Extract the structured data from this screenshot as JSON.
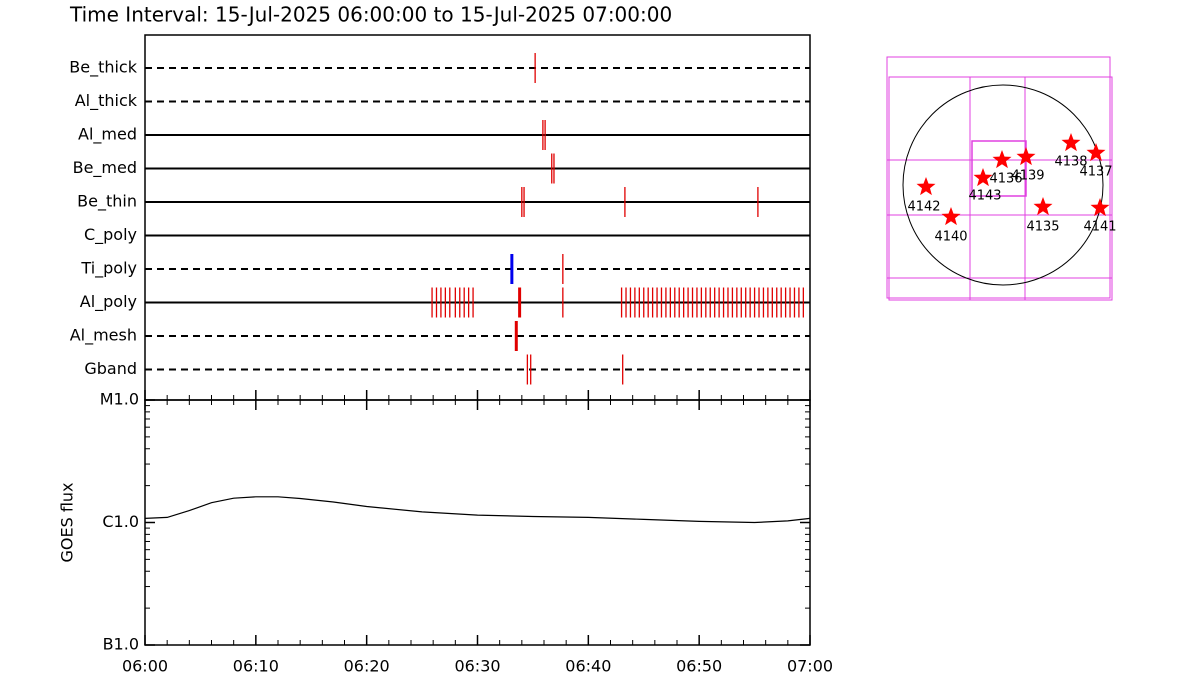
{
  "chart_data": [
    {
      "type": "event-raster",
      "title": "Time Interval: 15-Jul-2025 06:00:00 to 15-Jul-2025 07:00:00",
      "xlim": [
        0,
        60
      ],
      "color": "#e00000",
      "rows": [
        {
          "name": "Be_thick",
          "line": "dashed",
          "events": [
            35.2
          ]
        },
        {
          "name": "Al_thick",
          "line": "dashed",
          "events": []
        },
        {
          "name": "Al_med",
          "line": "solid",
          "events": [
            35.9,
            36.1
          ]
        },
        {
          "name": "Be_med",
          "line": "solid",
          "events": [
            36.7,
            36.9
          ]
        },
        {
          "name": "Be_thin",
          "line": "solid",
          "events": [
            34.0,
            34.2,
            43.3,
            55.3
          ]
        },
        {
          "name": "C_poly",
          "line": "solid",
          "events": []
        },
        {
          "name": "Ti_poly",
          "line": "dashed",
          "events": [
            37.7
          ],
          "bold_events": [
            33.1
          ],
          "bold_color": "#0000ee"
        },
        {
          "name": "Al_poly",
          "line": "solid",
          "events": [
            25.9,
            26.3,
            26.7,
            27.1,
            27.5,
            28.0,
            28.4,
            28.8,
            29.2,
            29.6,
            37.7,
            43.0,
            43.4,
            43.8,
            44.2,
            44.6,
            45.0,
            45.4,
            45.8,
            46.2,
            46.6,
            47.0,
            47.4,
            47.8,
            48.2,
            48.6,
            49.0,
            49.4,
            49.8,
            50.2,
            50.6,
            51.0,
            51.4,
            51.8,
            52.2,
            52.6,
            53.0,
            53.4,
            53.8,
            54.2,
            54.6,
            55.0,
            55.4,
            55.8,
            56.2,
            56.6,
            57.0,
            57.4,
            57.8,
            58.2,
            58.6,
            59.0,
            59.4
          ],
          "bold_events": [
            33.8
          ],
          "bold_color": "#e00000"
        },
        {
          "name": "Al_mesh",
          "line": "dashed",
          "events": [],
          "bold_events": [
            33.5
          ],
          "bold_color": "#e00000"
        },
        {
          "name": "Gband",
          "line": "dashed",
          "events": [
            34.5,
            34.8,
            43.1
          ]
        }
      ]
    },
    {
      "type": "line",
      "ylabel": "GOES flux",
      "log": true,
      "color": "#000000",
      "xlim": [
        0,
        60
      ],
      "xticks": [
        {
          "value": 0,
          "label": "06:00"
        },
        {
          "value": 10,
          "label": "06:10"
        },
        {
          "value": 20,
          "label": "06:20"
        },
        {
          "value": 30,
          "label": "06:30"
        },
        {
          "value": 40,
          "label": "06:40"
        },
        {
          "value": 50,
          "label": "06:50"
        },
        {
          "value": 60,
          "label": "07:00"
        }
      ],
      "ylim": [
        1e-07,
        1e-05
      ],
      "yticks": [
        {
          "value": 1e-07,
          "label": "B1.0"
        },
        {
          "value": 1e-06,
          "label": "C1.0"
        },
        {
          "value": 1e-05,
          "label": "M1.0"
        }
      ],
      "x": [
        0,
        2,
        4,
        6,
        8,
        10,
        12,
        14,
        17,
        20,
        25,
        30,
        35,
        40,
        45,
        50,
        55,
        58,
        60
      ],
      "values": [
        1.08e-06,
        1.1e-06,
        1.25e-06,
        1.45e-06,
        1.58e-06,
        1.62e-06,
        1.62e-06,
        1.57e-06,
        1.47e-06,
        1.35e-06,
        1.22e-06,
        1.15e-06,
        1.12e-06,
        1.1e-06,
        1.06e-06,
        1.02e-06,
        1e-06,
        1.03e-06,
        1.08e-06
      ]
    },
    {
      "type": "map",
      "labels": [
        "4142",
        "4140",
        "4143",
        "4136",
        "4139",
        "4138",
        "4137",
        "4135",
        "4141"
      ]
    }
  ]
}
